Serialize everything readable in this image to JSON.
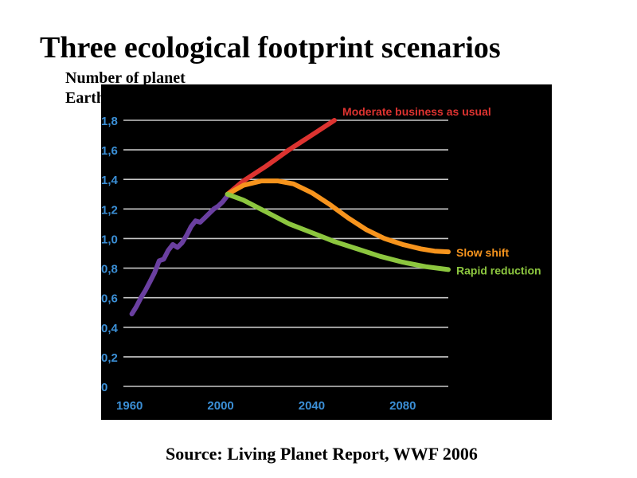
{
  "title": "Three ecological footprint scenarios",
  "ylabel_line1": "Number of planet",
  "ylabel_line2": "Earths",
  "source": "Source: Living Planet Report, WWF 2006",
  "chart_data": {
    "type": "line",
    "title": "Three ecological footprint scenarios",
    "ylabel": "Number of planet Earths",
    "xlabel": "",
    "xlim": [
      1958,
      2100
    ],
    "ylim": [
      0,
      1.8
    ],
    "x_ticks": [
      {
        "value": 1960,
        "label": "1960"
      },
      {
        "value": 2000,
        "label": "2000"
      },
      {
        "value": 2040,
        "label": "2040"
      },
      {
        "value": 2080,
        "label": "2080"
      }
    ],
    "y_ticks": [
      {
        "value": 0,
        "label": "0"
      },
      {
        "value": 0.2,
        "label": "0,2"
      },
      {
        "value": 0.4,
        "label": "0,4"
      },
      {
        "value": 0.6,
        "label": "0,6"
      },
      {
        "value": 0.8,
        "label": "0,8"
      },
      {
        "value": 1.0,
        "label": "1,0"
      },
      {
        "value": 1.2,
        "label": "1,2"
      },
      {
        "value": 1.4,
        "label": "1,4"
      },
      {
        "value": 1.6,
        "label": "1,6"
      },
      {
        "value": 1.8,
        "label": "1,8"
      }
    ],
    "grid": true,
    "axis_tick_color": "#3b8fd6",
    "background": "#000000",
    "series": [
      {
        "name": "",
        "color": "#6a3fa0",
        "x": [
          1961,
          1963,
          1965,
          1967,
          1969,
          1971,
          1973,
          1975,
          1977,
          1979,
          1981,
          1983,
          1985,
          1987,
          1989,
          1991,
          1993,
          1995,
          1997,
          1999,
          2001,
          2003
        ],
        "y": [
          0.49,
          0.54,
          0.6,
          0.65,
          0.71,
          0.77,
          0.85,
          0.86,
          0.92,
          0.96,
          0.94,
          0.97,
          1.02,
          1.08,
          1.12,
          1.11,
          1.14,
          1.17,
          1.2,
          1.22,
          1.25,
          1.29
        ]
      },
      {
        "name": "Moderate business as usual",
        "color": "#dd3330",
        "x": [
          2003,
          2010,
          2020,
          2030,
          2040,
          2050
        ],
        "y": [
          1.3,
          1.39,
          1.49,
          1.6,
          1.7,
          1.8
        ]
      },
      {
        "name": "Slow shift",
        "color": "#f7941d",
        "x": [
          2003,
          2010,
          2018,
          2025,
          2032,
          2040,
          2048,
          2056,
          2064,
          2072,
          2080,
          2088,
          2094,
          2100
        ],
        "y": [
          1.3,
          1.36,
          1.39,
          1.39,
          1.37,
          1.31,
          1.23,
          1.14,
          1.06,
          1.0,
          0.96,
          0.93,
          0.915,
          0.91
        ]
      },
      {
        "name": "Rapid reduction",
        "color": "#8cc63f",
        "x": [
          2003,
          2010,
          2020,
          2030,
          2040,
          2050,
          2060,
          2070,
          2080,
          2090,
          2100
        ],
        "y": [
          1.3,
          1.26,
          1.18,
          1.1,
          1.04,
          0.98,
          0.93,
          0.88,
          0.84,
          0.81,
          0.79
        ]
      }
    ]
  }
}
